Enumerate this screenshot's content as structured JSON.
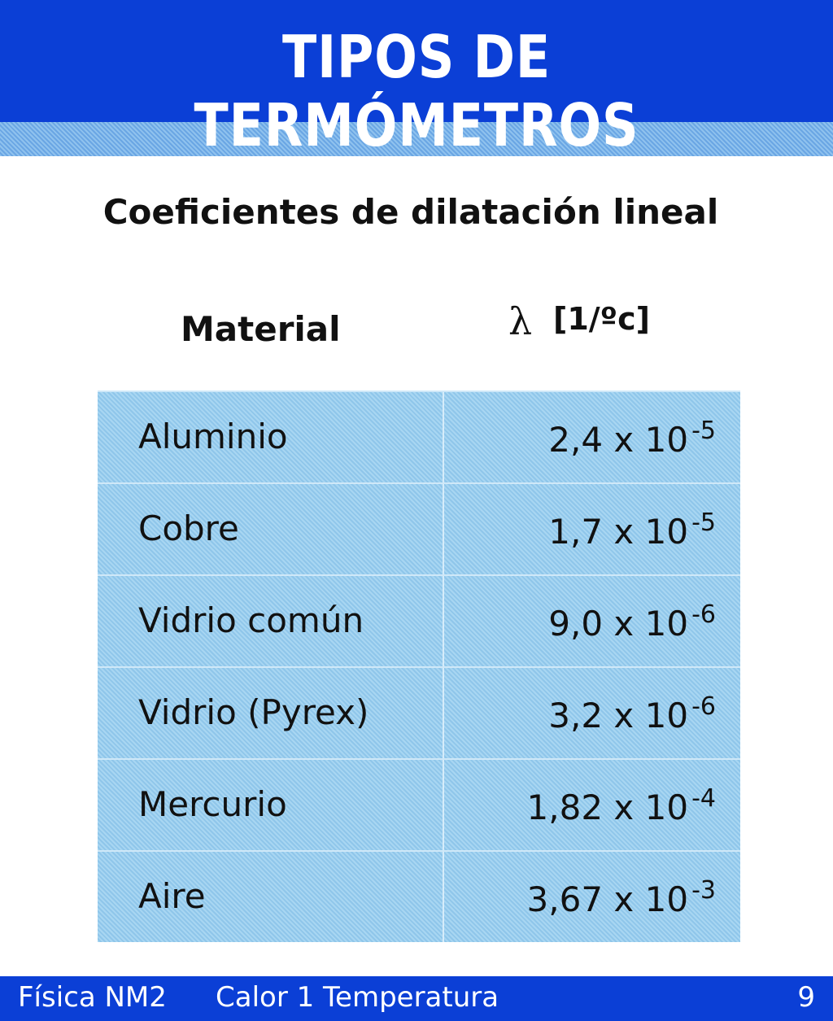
{
  "header": {
    "title": "TIPOS DE TERMÓMETROS"
  },
  "subtitle": "Coeficientes de dilatación lineal",
  "table": {
    "headers": {
      "material": "Material",
      "symbol": "λ",
      "unit": "[1/ºc]"
    },
    "rows": [
      {
        "material": "Aluminio",
        "mantissa": "2,4",
        "base": "x 10",
        "exponent": "-5"
      },
      {
        "material": "Cobre",
        "mantissa": "1,7",
        "base": "x 10",
        "exponent": "-5"
      },
      {
        "material": "Vidrio común",
        "mantissa": "9,0",
        "base": "x 10",
        "exponent": "-6"
      },
      {
        "material": "Vidrio (Pyrex)",
        "mantissa": "3,2",
        "base": "x 10",
        "exponent": "-6"
      },
      {
        "material": "Mercurio",
        "mantissa": "1,82",
        "base": "x 10",
        "exponent": "-4"
      },
      {
        "material": "Aire",
        "mantissa": "3,67",
        "base": "x 10",
        "exponent": "-3"
      }
    ]
  },
  "footer": {
    "course": "Física NM2",
    "unit": "Calor 1 Temperatura",
    "page": "9"
  }
}
